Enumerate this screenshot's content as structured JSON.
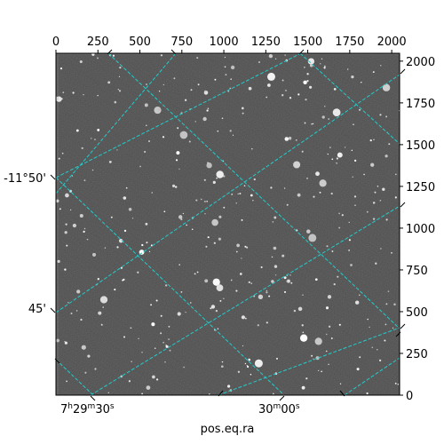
{
  "figure": {
    "xlabel": "pos.eq.ra",
    "pixel_x_ticks": [
      "0",
      "250",
      "500",
      "750",
      "1000",
      "1250",
      "1500",
      "1750",
      "2000"
    ],
    "pixel_y_ticks": [
      "0",
      "250",
      "500",
      "750",
      "1000",
      "1250",
      "1500",
      "1750",
      "2000"
    ],
    "ra_ticks": [
      {
        "h": "7",
        "hs": "h",
        "m": "29",
        "ms": "m",
        "s": "30",
        "ss": "s"
      },
      {
        "m": "30",
        "ms": "m",
        "s": "00",
        "ss": "s"
      }
    ],
    "dec_ticks": [
      "-11°50'",
      "45'"
    ],
    "grid_color": "#22cccc",
    "image_background": "#6e6e6e"
  }
}
